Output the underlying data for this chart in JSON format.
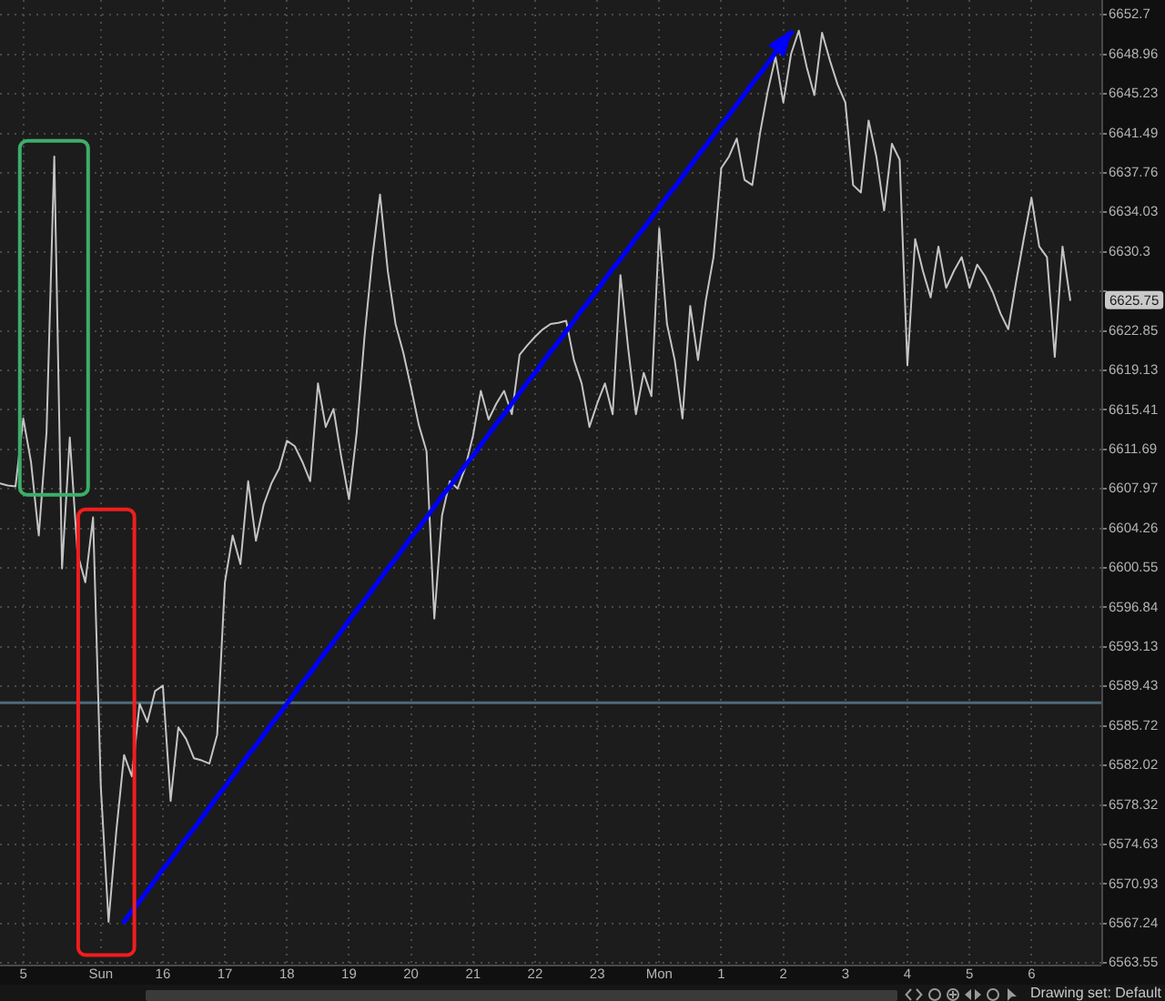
{
  "chart_data": {
    "type": "line",
    "categories": [
      null,
      null,
      null,
      "5",
      null,
      null,
      null,
      null,
      null,
      null,
      null,
      null,
      null,
      "Sun",
      null,
      null,
      null,
      null,
      null,
      null,
      null,
      "16",
      null,
      null,
      null,
      null,
      null,
      null,
      null,
      "17",
      null,
      null,
      null,
      null,
      null,
      null,
      null,
      "18",
      null,
      null,
      null,
      null,
      null,
      null,
      null,
      "19",
      null,
      null,
      null,
      null,
      null,
      null,
      null,
      "20",
      null,
      null,
      null,
      null,
      null,
      null,
      null,
      "21",
      null,
      null,
      null,
      null,
      null,
      null,
      null,
      "22",
      null,
      null,
      null,
      null,
      null,
      null,
      null,
      "23",
      null,
      null,
      null,
      null,
      null,
      null,
      null,
      "Mon",
      null,
      null,
      null,
      null,
      null,
      null,
      null,
      "1",
      null,
      null,
      null,
      null,
      null,
      null,
      null,
      "2",
      null,
      null,
      null,
      null,
      null,
      null,
      null,
      "3",
      null,
      null,
      null,
      null,
      null,
      null,
      null,
      "4",
      null,
      null,
      null,
      null,
      null,
      null,
      null,
      "5",
      null,
      null,
      null,
      null,
      null,
      null,
      null,
      "6",
      null,
      null,
      null,
      null,
      null,
      null,
      null,
      null,
      null
    ],
    "series": [
      {
        "color": "#c4c4c4",
        "values": [
          6608.5,
          6608.3,
          6608.2,
          6614.6,
          6610.5,
          6603.6,
          6613.3,
          6639.3,
          6600.5,
          6612.8,
          6601.9,
          6599.2,
          6605.3,
          6580.0,
          6567.4,
          6575.9,
          6583.0,
          6581.0,
          6587.8,
          6586.1,
          6589.0,
          6589.5,
          6578.7,
          6585.6,
          6584.5,
          6582.7,
          6582.5,
          6582.2,
          6584.9,
          6599.2,
          6603.6,
          6600.9,
          6608.7,
          6603.1,
          6606.5,
          6608.5,
          6609.9,
          6612.5,
          6612.0,
          6610.5,
          6608.7,
          6617.9,
          6613.8,
          6615.5,
          6611.0,
          6607.0,
          6613.3,
          6622.3,
          6629.7,
          6635.7,
          6628.5,
          6623.5,
          6620.8,
          6617.5,
          6614.0,
          6611.5,
          6595.8,
          6605.5,
          6608.7,
          6608.0,
          6610.0,
          6613.0,
          6617.2,
          6614.5,
          6616.0,
          6617.2,
          6615.0,
          6620.6,
          6621.5,
          6622.3,
          6623.0,
          6623.5,
          6623.6,
          6623.8,
          6620.1,
          6617.9,
          6613.8,
          6616.0,
          6617.9,
          6615.0,
          6628.1,
          6621.2,
          6615.0,
          6618.9,
          6616.7,
          6632.5,
          6623.5,
          6620.1,
          6614.6,
          6625.2,
          6620.1,
          6625.7,
          6629.8,
          6638.2,
          6639.3,
          6641.0,
          6637.1,
          6636.6,
          6641.5,
          6645.5,
          6648.7,
          6644.4,
          6649.0,
          6651.2,
          6647.8,
          6645.1,
          6651.0,
          6648.4,
          6646.1,
          6644.4,
          6636.6,
          6635.9,
          6642.7,
          6639.3,
          6634.2,
          6640.5,
          6639.0,
          6619.6,
          6631.5,
          6628.5,
          6626.0,
          6630.8,
          6626.9,
          6628.5,
          6629.8,
          6626.9,
          6629.1,
          6628.0,
          6626.5,
          6624.5,
          6623.0,
          6627.4,
          6631.5,
          6635.4,
          6630.8,
          6629.8,
          6620.4,
          6630.8,
          6625.75,
          null,
          null,
          null,
          null
        ]
      },
      {
        "type": "line",
        "color": "#0000ff",
        "values": [
          null,
          null,
          null,
          null,
          null,
          null,
          null,
          null,
          null,
          null,
          null,
          null,
          null,
          null,
          null,
          null,
          6567.4,
          6568.4,
          6569.3,
          6570.3,
          6571.3,
          6572.3,
          6573.2,
          6574.2,
          6575.2,
          6576.1,
          6577.1,
          6578.1,
          6579.1,
          6580.0,
          6581.0,
          6582.0,
          6583.0,
          6583.9,
          6584.9,
          6585.9,
          6586.8,
          6587.8,
          6588.8,
          6589.8,
          6590.7,
          6591.7,
          6592.7,
          6593.6,
          6594.6,
          6595.6,
          6596.6,
          6597.5,
          6598.5,
          6599.5,
          6600.5,
          6601.4,
          6602.4,
          6603.4,
          6604.3,
          6605.3,
          6606.3,
          6607.3,
          6608.2,
          6609.2,
          6610.2,
          6611.1,
          6612.1,
          6613.1,
          6614.1,
          6615.0,
          6616.0,
          6617.0,
          6618.0,
          6618.9,
          6619.9,
          6620.9,
          6621.8,
          6622.8,
          6623.8,
          6624.8,
          6625.7,
          6626.7,
          6627.7,
          6628.7,
          6629.6,
          6630.6,
          6631.6,
          6632.5,
          6633.5,
          6634.5,
          6635.5,
          6636.4,
          6637.4,
          6638.4,
          6639.4,
          6640.3,
          6641.3,
          6642.3,
          6643.2,
          6644.2,
          6645.2,
          6646.2,
          6647.1,
          6648.1,
          6649.1,
          6650.0,
          6651.0,
          null,
          null,
          null,
          null,
          null,
          null,
          null,
          null,
          null,
          null,
          null,
          null,
          null,
          null,
          null,
          null,
          null,
          null,
          null,
          null,
          null,
          null,
          null,
          null,
          null,
          null,
          null,
          null,
          null,
          null,
          null,
          null,
          null,
          null,
          null,
          null,
          null,
          null,
          null,
          null
        ]
      }
    ],
    "ylim": [
      6563.4,
      6654.1
    ],
    "yticks": [
      6563.55,
      6567.24,
      6570.93,
      6574.63,
      6578.32,
      6582.02,
      6585.72,
      6589.43,
      6593.13,
      6596.84,
      6600.55,
      6604.26,
      6607.97,
      6611.69,
      6615.41,
      6619.13,
      6622.85,
      {
        "value": 6626.57,
        "label": null
      },
      6630.3,
      6634.03,
      6637.76,
      6641.49,
      6645.23,
      6648.96,
      6652.7
    ],
    "log": true,
    "grid": true,
    "marker": "none",
    "ref_lines": [
      {
        "axis": "y",
        "value": 6587.9,
        "color": "#4d6b7a"
      }
    ],
    "annotations": [
      {
        "text": "6625.75",
        "y": 6625.75
      },
      "Drawing set: Default"
    ]
  }
}
